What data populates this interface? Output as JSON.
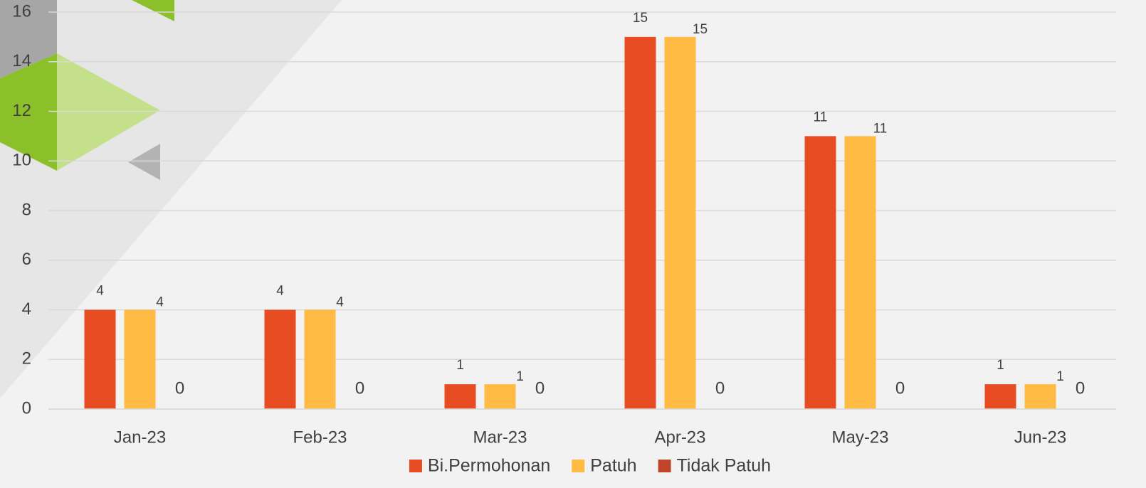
{
  "chart_data": {
    "type": "bar",
    "categories": [
      "Jan-23",
      "Feb-23",
      "Mar-23",
      "Apr-23",
      "May-23",
      "Jun-23"
    ],
    "series": [
      {
        "name": "Bi.Permohonan",
        "color": "#e84c22",
        "values": [
          4,
          4,
          1,
          15,
          11,
          1
        ]
      },
      {
        "name": "Patuh",
        "color": "#ffbb44",
        "values": [
          4,
          4,
          1,
          15,
          11,
          1
        ]
      },
      {
        "name": "Tidak Patuh",
        "color": "#c0442a",
        "values": [
          0,
          0,
          0,
          0,
          0,
          0
        ]
      }
    ],
    "ylim": [
      0,
      16
    ],
    "yticks": [
      0,
      2,
      4,
      6,
      8,
      10,
      12,
      14,
      16
    ],
    "grid": true,
    "legend": "bottom"
  }
}
